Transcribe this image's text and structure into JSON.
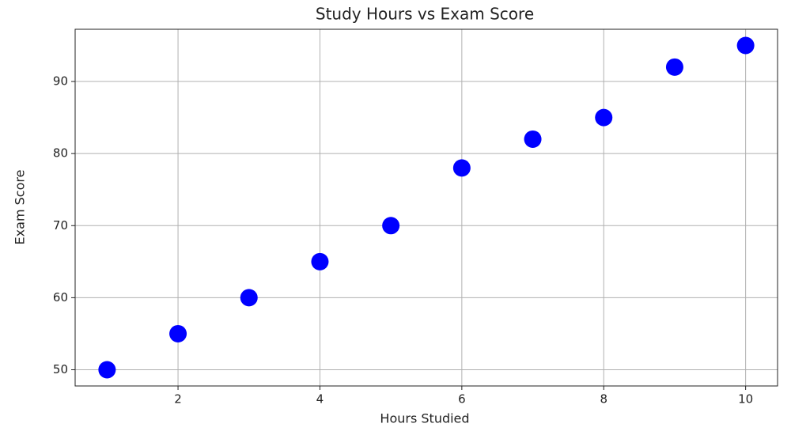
{
  "chart_data": {
    "type": "scatter",
    "title": "Study Hours vs Exam Score",
    "x_label": "Hours Studied",
    "y_label": "Exam Score",
    "x": [
      1,
      2,
      3,
      4,
      5,
      6,
      7,
      8,
      9,
      10
    ],
    "values": [
      50,
      55,
      60,
      65,
      70,
      78,
      82,
      85,
      92,
      95
    ],
    "color": "#0000ff",
    "xlim": [
      0.55,
      10.45
    ],
    "ylim": [
      47.75,
      97.25
    ],
    "xticks": [
      2,
      4,
      6,
      8,
      10
    ],
    "yticks": [
      50,
      60,
      70,
      80,
      90
    ],
    "grid": true
  }
}
